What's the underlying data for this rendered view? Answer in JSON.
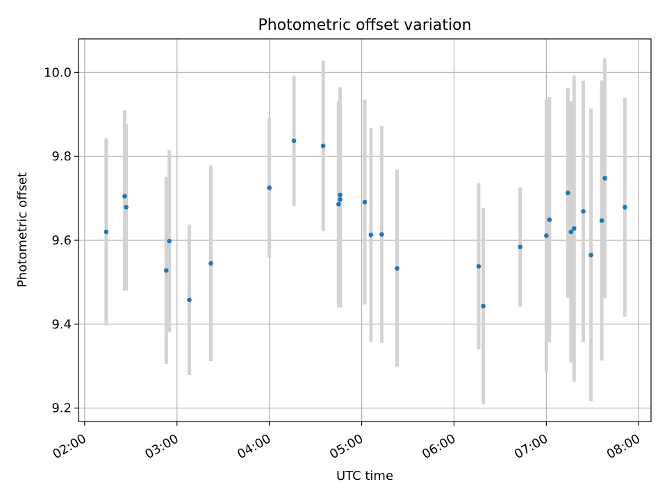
{
  "chart_data": {
    "type": "scatter",
    "title": "Photometric offset variation",
    "xlabel": "UTC time",
    "ylabel": "Photometric offset",
    "x_unit": "hh:mm UTC",
    "xlim": [
      "01:56",
      "08:08"
    ],
    "ylim": [
      9.168,
      10.08
    ],
    "xticks": [
      "02:00",
      "03:00",
      "04:00",
      "05:00",
      "06:00",
      "07:00",
      "08:00"
    ],
    "yticks": [
      9.2,
      9.4,
      9.6,
      9.8,
      10.0
    ],
    "ytick_labels": [
      "9.2",
      "9.4",
      "9.6",
      "9.8",
      "10.0"
    ],
    "grid": true,
    "colors": {
      "point": "#1f77b4",
      "errorbar": "#d3d3d3",
      "grid": "#b0b0b0"
    },
    "series": [
      {
        "points": [
          {
            "x": "02:14",
            "y": 9.62,
            "lo": 9.397,
            "hi": 9.843
          },
          {
            "x": "02:26",
            "y": 9.705,
            "lo": 9.48,
            "hi": 9.91
          },
          {
            "x": "02:27",
            "y": 9.679,
            "lo": 9.48,
            "hi": 9.878
          },
          {
            "x": "02:53",
            "y": 9.528,
            "lo": 9.305,
            "hi": 9.751
          },
          {
            "x": "02:55",
            "y": 9.598,
            "lo": 9.381,
            "hi": 9.815
          },
          {
            "x": "03:08",
            "y": 9.458,
            "lo": 9.279,
            "hi": 9.637
          },
          {
            "x": "03:22",
            "y": 9.545,
            "lo": 9.312,
            "hi": 9.778
          },
          {
            "x": "04:00",
            "y": 9.725,
            "lo": 9.558,
            "hi": 9.892
          },
          {
            "x": "04:16",
            "y": 9.837,
            "lo": 9.682,
            "hi": 9.992
          },
          {
            "x": "04:35",
            "y": 9.825,
            "lo": 9.622,
            "hi": 10.028
          },
          {
            "x": "04:45",
            "y": 9.686,
            "lo": 9.44,
            "hi": 9.932
          },
          {
            "x": "04:46",
            "y": 9.697,
            "lo": 9.44,
            "hi": 9.954
          },
          {
            "x": "04:46",
            "y": 9.708,
            "lo": 9.451,
            "hi": 9.965
          },
          {
            "x": "05:02",
            "y": 9.691,
            "lo": 9.447,
            "hi": 9.935
          },
          {
            "x": "05:06",
            "y": 9.613,
            "lo": 9.358,
            "hi": 9.868
          },
          {
            "x": "05:13",
            "y": 9.614,
            "lo": 9.355,
            "hi": 9.873
          },
          {
            "x": "05:23",
            "y": 9.533,
            "lo": 9.298,
            "hi": 9.768
          },
          {
            "x": "06:16",
            "y": 9.538,
            "lo": 9.34,
            "hi": 9.736
          },
          {
            "x": "06:19",
            "y": 9.443,
            "lo": 9.209,
            "hi": 9.677
          },
          {
            "x": "06:43",
            "y": 9.584,
            "lo": 9.442,
            "hi": 9.726
          },
          {
            "x": "07:00",
            "y": 9.611,
            "lo": 9.287,
            "hi": 9.935
          },
          {
            "x": "07:02",
            "y": 9.649,
            "lo": 9.357,
            "hi": 9.941
          },
          {
            "x": "07:14",
            "y": 9.713,
            "lo": 9.463,
            "hi": 9.963
          },
          {
            "x": "07:16",
            "y": 9.62,
            "lo": 9.309,
            "hi": 9.931
          },
          {
            "x": "07:18",
            "y": 9.628,
            "lo": 9.263,
            "hi": 9.993
          },
          {
            "x": "07:24",
            "y": 9.669,
            "lo": 9.358,
            "hi": 9.98
          },
          {
            "x": "07:29",
            "y": 9.565,
            "lo": 9.216,
            "hi": 9.914
          },
          {
            "x": "07:36",
            "y": 9.647,
            "lo": 9.313,
            "hi": 9.981
          },
          {
            "x": "07:38",
            "y": 9.748,
            "lo": 9.462,
            "hi": 10.034
          },
          {
            "x": "07:51",
            "y": 9.679,
            "lo": 9.418,
            "hi": 9.94
          }
        ]
      }
    ]
  }
}
